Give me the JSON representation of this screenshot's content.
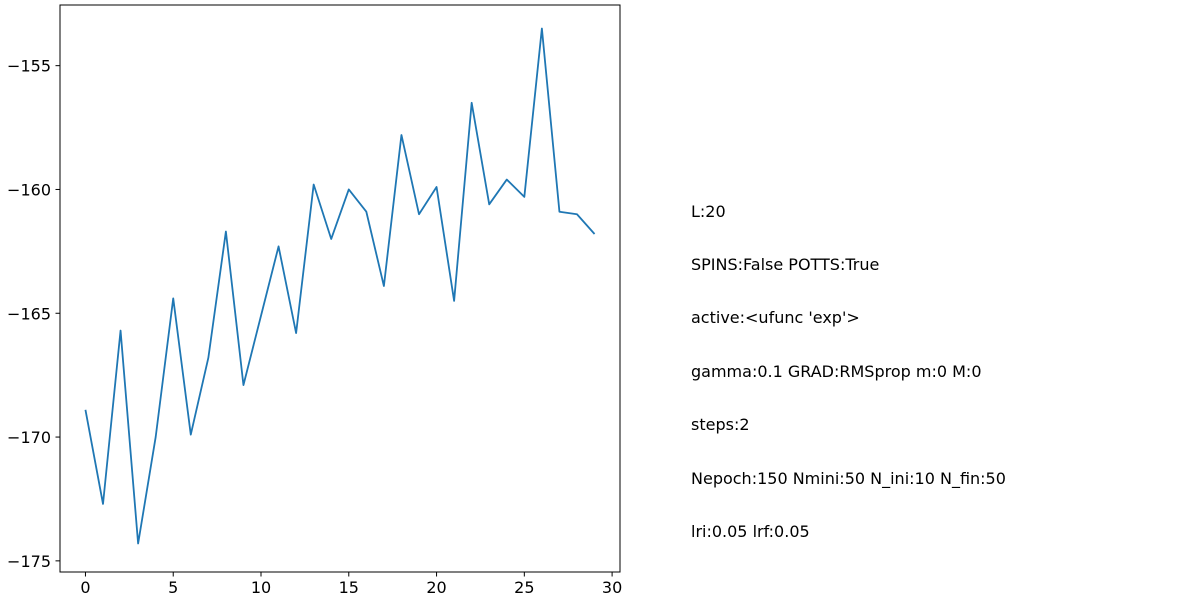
{
  "chart_data": {
    "type": "line",
    "title": "",
    "xlabel": "",
    "ylabel": "",
    "xlim": [
      -1.45,
      30.45
    ],
    "ylim": [
      -175.45,
      -152.55
    ],
    "x_ticks": [
      0,
      5,
      10,
      15,
      20,
      25,
      30
    ],
    "y_ticks": [
      -155,
      -160,
      -165,
      -170,
      -175
    ],
    "grid": false,
    "series": [
      {
        "name": "series-1",
        "color": "#1f77b4",
        "x": [
          0,
          1,
          2,
          3,
          4,
          5,
          6,
          7,
          8,
          9,
          10,
          11,
          12,
          13,
          14,
          15,
          16,
          17,
          18,
          19,
          20,
          21,
          22,
          23,
          24,
          25,
          26,
          27,
          28,
          29
        ],
        "values": [
          -168.9,
          -172.7,
          -165.7,
          -174.3,
          -170.0,
          -164.4,
          -169.9,
          -166.8,
          -161.7,
          -167.9,
          -165.1,
          -162.3,
          -165.8,
          -159.8,
          -162.0,
          -160.0,
          -160.9,
          -163.9,
          -157.8,
          -161.0,
          -159.9,
          -164.5,
          -156.5,
          -160.6,
          -159.6,
          -160.3,
          -153.5,
          -160.9,
          -161.0,
          -161.8
        ]
      }
    ]
  },
  "info_lines": [
    "L:20",
    "SPINS:False POTTS:True",
    "active:<ufunc 'exp'>",
    "gamma:0.1 GRAD:RMSprop m:0 M:0",
    "steps:2",
    "Nepoch:150 Nmini:50 N_ini:10 N_fin:50",
    "lri:0.05 lrf:0.05"
  ]
}
